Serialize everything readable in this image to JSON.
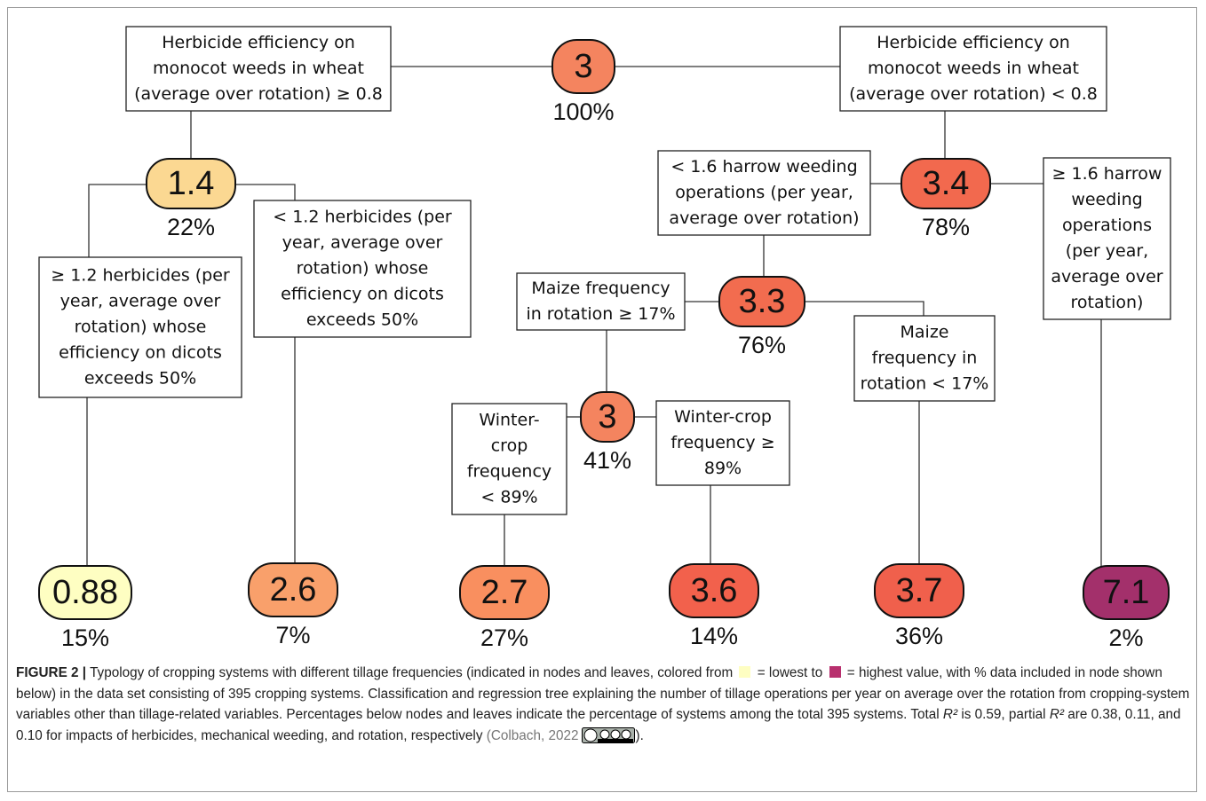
{
  "nodes": [
    {
      "value": "3",
      "share": "100%",
      "color": "#f4845f"
    },
    {
      "value": "1.4",
      "share": "22%",
      "color": "#fbd892"
    },
    {
      "value": "3.4",
      "share": "78%",
      "color": "#f2694e"
    },
    {
      "value": "3.3",
      "share": "76%",
      "color": "#f26c4f"
    },
    {
      "value": "3",
      "share": "41%",
      "color": "#f4845f"
    },
    {
      "value": "0.88",
      "share": "15%",
      "color": "#fefec2"
    },
    {
      "value": "2.6",
      "share": "7%",
      "color": "#f9a06b"
    },
    {
      "value": "2.7",
      "share": "27%",
      "color": "#f98f5f"
    },
    {
      "value": "3.6",
      "share": "14%",
      "color": "#f2614c"
    },
    {
      "value": "3.7",
      "share": "36%",
      "color": "#f0604c"
    },
    {
      "value": "7.1",
      "share": "2%",
      "color": "#a3306b"
    }
  ],
  "splits": [
    {
      "lines": [
        "Herbicide efficiency on",
        "monocot weeds in wheat",
        "(average over rotation)  ≥ 0.8"
      ]
    },
    {
      "lines": [
        "Herbicide efficiency on",
        "monocot weeds in wheat",
        "(average over rotation)  < 0.8"
      ]
    },
    {
      "lines": [
        "≥ 1.2 herbicides (per",
        "year, average over",
        "rotation) whose",
        "efficiency on dicots",
        "exceeds 50%"
      ]
    },
    {
      "lines": [
        "< 1.2 herbicides (per",
        "year, average over",
        "rotation) whose",
        "efficiency on dicots",
        "exceeds 50%"
      ]
    },
    {
      "lines": [
        "< 1.6 harrow weeding",
        "operations (per year,",
        "average over rotation)"
      ]
    },
    {
      "lines": [
        "≥ 1.6 harrow",
        "weeding",
        "operations",
        "(per year,",
        "average over",
        "rotation)"
      ]
    },
    {
      "lines": [
        "Maize frequency",
        "in rotation ≥ 17%"
      ]
    },
    {
      "lines": [
        "Maize",
        "frequency in",
        "rotation < 17%"
      ]
    },
    {
      "lines": [
        "Winter-",
        "crop",
        "frequency",
        "< 89%"
      ]
    },
    {
      "lines": [
        "Winter-crop",
        "frequency ≥",
        "89%"
      ]
    }
  ],
  "caption": {
    "label": "FIGURE 2 |",
    "text": [
      "Typology of cropping systems with different tillage frequencies (indicated in nodes and leaves, colored from",
      "= lowest to",
      "= highest value, with % data included in node shown below) in the data set consisting of 395 cropping systems. Classification and regression tree explaining the number of tillage operations per year on average over the rotation from cropping-system variables other than tillage-related variables. Percentages below nodes and leaves indicate the percentage of systems among the total 395 systems. Total",
      "R²",
      "is 0.59, partial",
      "R²",
      "are 0.38, 0.11, and 0.10 for impacts of herbicides, mechanical weeding, and rotation, respectively",
      "(Colbach, 2022",
      ")."
    ]
  }
}
